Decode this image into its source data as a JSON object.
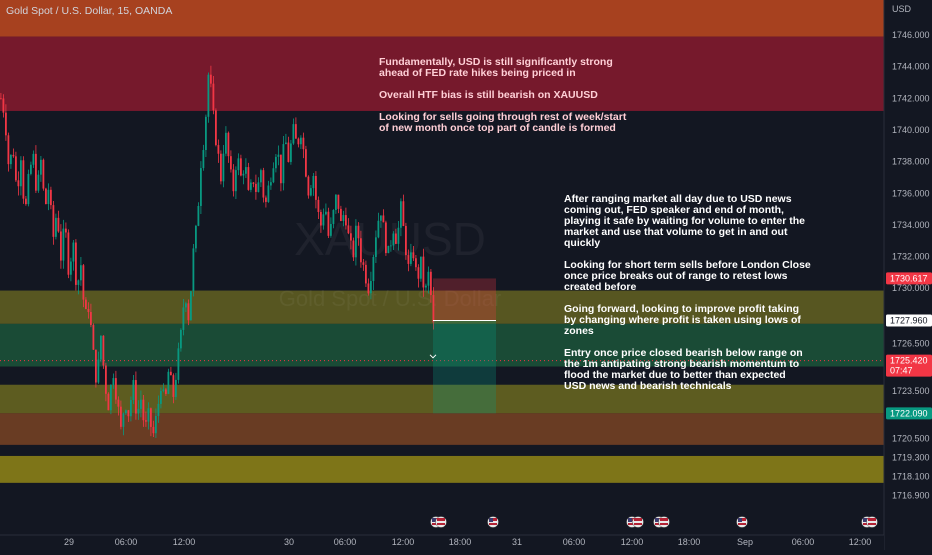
{
  "header": {
    "title": "Gold Spot / U.S. Dollar, 15, OANDA"
  },
  "watermark": {
    "symbol": "XAUUSD",
    "name": "Gold Spot / U.S. Dollar"
  },
  "y_axis": {
    "currency": "USD",
    "ticks": [
      "1746.000",
      "1744.000",
      "1742.000",
      "1740.000",
      "1738.000",
      "1736.000",
      "1734.000",
      "1732.000",
      "1730.000",
      "1728.000",
      "1726.500",
      "1725.000",
      "1723.500",
      "1722.000",
      "1720.500",
      "1719.300",
      "1718.100",
      "1716.900"
    ]
  },
  "x_axis": {
    "ticks": [
      "29",
      "06:00",
      "12:00",
      "30",
      "06:00",
      "12:00",
      "18:00",
      "31",
      "06:00",
      "12:00",
      "18:00",
      "Sep",
      "06:00",
      "12:00"
    ]
  },
  "price_tags": {
    "high": {
      "price": "1730.617",
      "color": "#f23645"
    },
    "mid": {
      "price": "1727.960",
      "color": "#ffffff"
    },
    "last": {
      "price": "1725.420",
      "time": "07:47",
      "color": "#f23645"
    },
    "low": {
      "price": "1722.090",
      "color": "#089981"
    }
  },
  "notes": {
    "fundamental": "Fundamentally, USD is still significantly strong\nahead of FED rate hikes being priced in\n\nOverall HTF bias is still bearish on XAUUSD\n\nLooking for sells going through rest of week/start\nof new month once top part of candle is formed",
    "ranging": "After ranging market all day due to USD news\ncoming out, FED speaker and end of month,\nplaying it safe by waiting for volume to enter the\nmarket and use that volume to get in and out\nquickly\n\nLooking for short term sells before London Close\nonce price breaks out of range to retest lows\ncreated before\n\nGoing forward, looking to improve profit taking\nby changing where profit is taken using lows of\nzones\n\nEntry once price closed bearish below range on\nthe 1m antipating strong bearish momentum to\nflood the market due to better than expected\nUSD news and bearish technicals"
  },
  "chart_data": {
    "type": "candlestick",
    "symbol": "XAUUSD",
    "timeframe": "15",
    "ylim": [
      1716.3,
      1747.6
    ],
    "close_path": [
      [
        0,
        1742.0
      ],
      [
        4,
        1741.0
      ],
      [
        8,
        1737.5
      ],
      [
        12,
        1739.0
      ],
      [
        16,
        1736.0
      ],
      [
        20,
        1738.5
      ],
      [
        24,
        1734.5
      ],
      [
        28,
        1737.0
      ],
      [
        32,
        1738.5
      ],
      [
        36,
        1736.0
      ],
      [
        40,
        1738.0
      ],
      [
        44,
        1735.0
      ],
      [
        48,
        1736.5
      ],
      [
        52,
        1733.0
      ],
      [
        56,
        1735.0
      ],
      [
        60,
        1732.0
      ],
      [
        64,
        1734.0
      ],
      [
        68,
        1731.0
      ],
      [
        72,
        1733.0
      ],
      [
        76,
        1730.0
      ],
      [
        80,
        1731.5
      ],
      [
        84,
        1728.0
      ],
      [
        88,
        1729.0
      ],
      [
        92,
        1726.0
      ],
      [
        96,
        1724.0
      ],
      [
        100,
        1727.0
      ],
      [
        104,
        1724.0
      ],
      [
        108,
        1722.5
      ],
      [
        112,
        1725.0
      ],
      [
        116,
        1723.0
      ],
      [
        120,
        1721.0
      ],
      [
        124,
        1723.0
      ],
      [
        128,
        1722.0
      ],
      [
        132,
        1724.0
      ],
      [
        136,
        1722.0
      ],
      [
        140,
        1723.0
      ],
      [
        144,
        1721.0
      ],
      [
        148,
        1722.0
      ],
      [
        152,
        1720.6
      ],
      [
        156,
        1722.0
      ],
      [
        160,
        1724.0
      ],
      [
        164,
        1722.5
      ],
      [
        168,
        1725.0
      ],
      [
        172,
        1723.0
      ],
      [
        176,
        1725.0
      ],
      [
        180,
        1727.0
      ],
      [
        184,
        1730.0
      ],
      [
        188,
        1728.0
      ],
      [
        192,
        1732.0
      ],
      [
        196,
        1734.0
      ],
      [
        200,
        1738.0
      ],
      [
        204,
        1740.0
      ],
      [
        208,
        1744.0
      ],
      [
        212,
        1741.0
      ],
      [
        216,
        1739.0
      ],
      [
        220,
        1737.0
      ],
      [
        224,
        1740.0
      ],
      [
        228,
        1738.0
      ],
      [
        232,
        1736.0
      ],
      [
        236,
        1738.5
      ],
      [
        240,
        1737.0
      ],
      [
        244,
        1738.0
      ],
      [
        248,
        1735.5
      ],
      [
        252,
        1737.0
      ],
      [
        256,
        1736.0
      ],
      [
        260,
        1737.5
      ],
      [
        264,
        1735.0
      ],
      [
        268,
        1736.5
      ],
      [
        272,
        1738.0
      ],
      [
        276,
        1739.0
      ],
      [
        280,
        1737.0
      ],
      [
        284,
        1739.5
      ],
      [
        288,
        1738.0
      ],
      [
        292,
        1740.0
      ],
      [
        296,
        1739.0
      ],
      [
        300,
        1740.0
      ],
      [
        304,
        1738.0
      ],
      [
        308,
        1736.0
      ],
      [
        312,
        1737.5
      ],
      [
        316,
        1735.0
      ],
      [
        320,
        1734.0
      ],
      [
        324,
        1735.5
      ],
      [
        328,
        1733.0
      ],
      [
        332,
        1734.5
      ],
      [
        336,
        1736.0
      ],
      [
        340,
        1734.0
      ],
      [
        344,
        1735.0
      ],
      [
        348,
        1733.0
      ],
      [
        352,
        1732.0
      ],
      [
        356,
        1734.0
      ],
      [
        360,
        1732.0
      ],
      [
        364,
        1731.0
      ],
      [
        368,
        1730.0
      ],
      [
        372,
        1732.0
      ],
      [
        376,
        1734.0
      ],
      [
        380,
        1735.0
      ],
      [
        384,
        1733.0
      ],
      [
        388,
        1732.0
      ],
      [
        392,
        1734.0
      ],
      [
        396,
        1733.0
      ],
      [
        400,
        1735.0
      ],
      [
        404,
        1733.0
      ],
      [
        408,
        1731.0
      ],
      [
        412,
        1732.5
      ],
      [
        416,
        1730.5
      ],
      [
        420,
        1731.5
      ],
      [
        424,
        1729.5
      ],
      [
        428,
        1731.0
      ],
      [
        432,
        1728.0
      ],
      [
        435,
        1725.4
      ]
    ],
    "zones": [
      {
        "name": "supply-top",
        "from": 1745.9,
        "to": 1748.5,
        "color": "#e0521f",
        "opacity": 0.72
      },
      {
        "name": "supply",
        "from": 1741.2,
        "to": 1745.9,
        "color": "#8c1a2e",
        "opacity": 0.82
      },
      {
        "name": "range-high",
        "from": 1727.75,
        "to": 1729.85,
        "color": "#8f8a20",
        "opacity": 0.55
      },
      {
        "name": "range",
        "from": 1725.05,
        "to": 1727.75,
        "color": "#1f6e45",
        "opacity": 0.6
      },
      {
        "name": "demand-1",
        "from": 1722.1,
        "to": 1723.9,
        "color": "#8f8a20",
        "opacity": 0.6
      },
      {
        "name": "demand-2",
        "from": 1720.1,
        "to": 1722.1,
        "color": "#a35525",
        "opacity": 0.6
      },
      {
        "name": "demand-3",
        "from": 1717.7,
        "to": 1719.4,
        "color": "#a89a15",
        "opacity": 0.72
      }
    ],
    "position": {
      "entry": 1727.96,
      "stop": 1730.617,
      "target": 1722.09
    }
  }
}
